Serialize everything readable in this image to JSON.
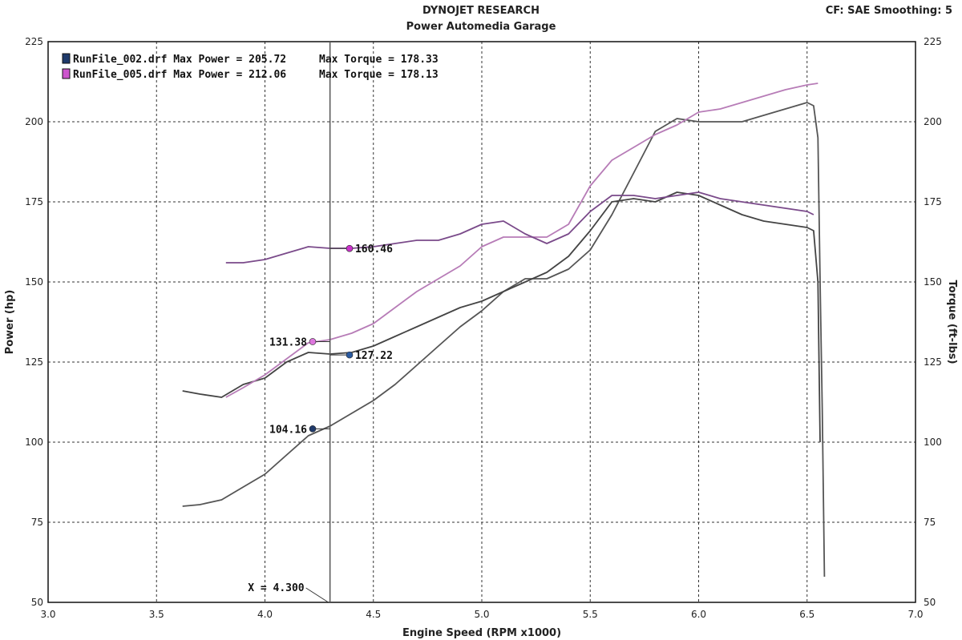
{
  "header": {
    "title": "DYNOJET RESEARCH",
    "subtitle": "Power Automedia Garage",
    "cf_info": "CF: SAE  Smoothing: 5"
  },
  "chart_data": {
    "type": "line",
    "xlabel": "Engine Speed (RPM x1000)",
    "ylabel_left": "Power (hp)",
    "ylabel_right": "Torque (ft-lbs)",
    "xlim": [
      3.0,
      7.0
    ],
    "ylim": [
      50,
      225
    ],
    "x_ticks": [
      "3.0",
      "3.5",
      "4.0",
      "4.5",
      "5.0",
      "5.5",
      "6.0",
      "6.5",
      "7.0"
    ],
    "y_ticks": [
      "50",
      "75",
      "100",
      "125",
      "150",
      "175",
      "200",
      "225"
    ],
    "grid": true,
    "legend_placement": "top-left",
    "legend": [
      {
        "swatch_color": "#1f3a6b",
        "text": "RunFile_002.drf Max Power = 205.72",
        "torque_text": "Max Torque = 178.33"
      },
      {
        "swatch_color": "#cc55cc",
        "text": "RunFile_005.drf Max Power = 212.06",
        "torque_text": "Max Torque = 178.13"
      }
    ],
    "cursor": {
      "x": 4.3,
      "label": "X = 4.300"
    },
    "markers": [
      {
        "x": 4.22,
        "y": 104.16,
        "label": "104.16",
        "color": "#1f3a6b",
        "side": "left"
      },
      {
        "x": 4.22,
        "y": 131.38,
        "label": "131.38",
        "color": "#dd77dd",
        "side": "left"
      },
      {
        "x": 4.39,
        "y": 127.22,
        "label": "127.22",
        "color": "#2a5aa0",
        "side": "right"
      },
      {
        "x": 4.39,
        "y": 160.46,
        "label": "160.46",
        "color": "#cc33cc",
        "side": "right"
      }
    ],
    "series": [
      {
        "color": "#555555",
        "x": [
          3.62,
          3.7,
          3.8,
          3.9,
          4.0,
          4.1,
          4.2,
          4.3,
          4.4,
          4.5,
          4.6,
          4.7,
          4.8,
          4.9,
          5.0,
          5.1,
          5.2,
          5.3,
          5.4,
          5.5,
          5.6,
          5.7,
          5.8,
          5.9,
          6.0,
          6.1,
          6.2,
          6.3,
          6.4,
          6.5,
          6.53,
          6.55,
          6.56,
          6.57,
          6.58
        ],
        "y": [
          80,
          80.5,
          82,
          86,
          90,
          96,
          102,
          105,
          109,
          113,
          118,
          124,
          130,
          136,
          141,
          147,
          151,
          151,
          154,
          160,
          171,
          184,
          197,
          201,
          200,
          200,
          200,
          202,
          204,
          206,
          205,
          195,
          150,
          110,
          58
        ]
      },
      {
        "color": "#444444",
        "x": [
          3.62,
          3.7,
          3.8,
          3.9,
          4.0,
          4.1,
          4.2,
          4.3,
          4.4,
          4.5,
          4.6,
          4.7,
          4.8,
          4.9,
          5.0,
          5.1,
          5.2,
          5.3,
          5.4,
          5.5,
          5.6,
          5.7,
          5.8,
          5.9,
          6.0,
          6.1,
          6.2,
          6.3,
          6.4,
          6.5,
          6.53,
          6.55,
          6.56
        ],
        "y": [
          116,
          115,
          114,
          118,
          120,
          125,
          128,
          127.5,
          128,
          130,
          133,
          136,
          139,
          142,
          144,
          147,
          150,
          153,
          158,
          166,
          175,
          176,
          175,
          178,
          177,
          174,
          171,
          169,
          168,
          167,
          166,
          150,
          100
        ]
      },
      {
        "color": "#b77cb7",
        "x": [
          3.82,
          3.9,
          4.0,
          4.1,
          4.2,
          4.3,
          4.4,
          4.5,
          4.6,
          4.7,
          4.8,
          4.9,
          5.0,
          5.1,
          5.2,
          5.3,
          5.4,
          5.5,
          5.6,
          5.7,
          5.8,
          5.9,
          6.0,
          6.1,
          6.2,
          6.3,
          6.4,
          6.5,
          6.55
        ],
        "y": [
          114,
          117,
          121,
          126,
          131,
          132,
          134,
          137,
          142,
          147,
          151,
          155,
          161,
          164,
          164,
          164,
          168,
          180,
          188,
          192,
          196,
          199,
          203,
          204,
          206,
          208,
          210,
          211.5,
          212
        ]
      },
      {
        "color": "#7a4a8a",
        "x": [
          3.82,
          3.9,
          4.0,
          4.1,
          4.2,
          4.3,
          4.4,
          4.5,
          4.6,
          4.7,
          4.8,
          4.9,
          5.0,
          5.1,
          5.2,
          5.3,
          5.4,
          5.5,
          5.6,
          5.7,
          5.8,
          5.9,
          6.0,
          6.1,
          6.2,
          6.3,
          6.4,
          6.5,
          6.53
        ],
        "y": [
          156,
          156,
          157,
          159,
          161,
          160.5,
          160.5,
          161,
          162,
          163,
          163,
          165,
          168,
          169,
          165,
          162,
          165,
          172,
          177,
          177,
          176,
          177,
          178,
          176,
          175,
          174,
          173,
          172,
          171
        ]
      }
    ]
  }
}
